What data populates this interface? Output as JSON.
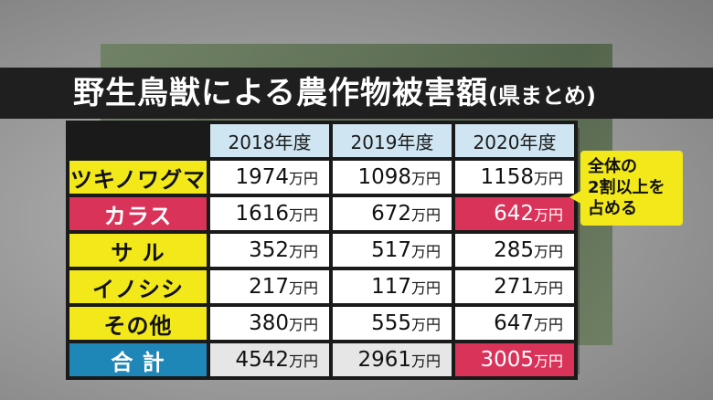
{
  "title": {
    "main": "野生鳥獣による農作物被害額",
    "sub": "(県まとめ)"
  },
  "table": {
    "years": [
      "2018年度",
      "2019年度",
      "2020年度"
    ],
    "unit": "万円",
    "rows": [
      {
        "label": "ツキノワグマ",
        "values": [
          "1974",
          "1098",
          "1158"
        ]
      },
      {
        "label": "カラス",
        "values": [
          "1616",
          "672",
          "642"
        ]
      },
      {
        "label": "サ ル",
        "values": [
          "352",
          "517",
          "285"
        ]
      },
      {
        "label": "イノシシ",
        "values": [
          "217",
          "117",
          "271"
        ]
      },
      {
        "label": "その他",
        "values": [
          "380",
          "555",
          "647"
        ]
      },
      {
        "label": "合 計",
        "values": [
          "4542",
          "2961",
          "3005"
        ]
      }
    ]
  },
  "callout": {
    "lines": [
      "全体の",
      "2割以上を",
      "占める"
    ]
  },
  "colors": {
    "header_bg": "#cfe6f2",
    "category_bg": "#f2e81a",
    "highlight_red": "#d9335a",
    "total_blue": "#1f86b8",
    "title_bar": "#1f1f1f"
  }
}
